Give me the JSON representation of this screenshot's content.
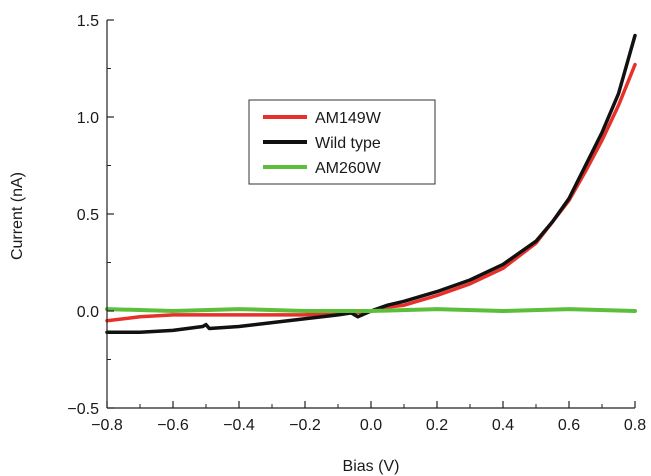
{
  "chart_data": {
    "type": "line",
    "xlabel": "Bias (V)",
    "ylabel": "Current (nA)",
    "xlim": [
      -0.8,
      0.8
    ],
    "ylim": [
      -0.5,
      1.5
    ],
    "x_ticks": [
      -0.8,
      -0.6,
      -0.4,
      -0.2,
      0.0,
      0.2,
      0.4,
      0.6,
      0.8
    ],
    "x_tick_labels": [
      "−0.8",
      "−0.6",
      "−0.4",
      "−0.2",
      "0.0",
      "0.2",
      "0.4",
      "0.6",
      "0.8"
    ],
    "y_ticks": [
      -0.5,
      0.0,
      0.5,
      1.0,
      1.5
    ],
    "y_tick_labels": [
      "−0.5",
      "0.0",
      "0.5",
      "1.0",
      "1.5"
    ],
    "grid": false,
    "legend_position": "upper-center",
    "series": [
      {
        "name": "AM149W",
        "color": "#e8302a",
        "x": [
          -0.8,
          -0.7,
          -0.6,
          -0.5,
          -0.4,
          -0.3,
          -0.2,
          -0.1,
          -0.05,
          0.0,
          0.05,
          0.1,
          0.2,
          0.3,
          0.4,
          0.5,
          0.55,
          0.6,
          0.65,
          0.7,
          0.75,
          0.8
        ],
        "y": [
          -0.05,
          -0.03,
          -0.02,
          -0.02,
          -0.02,
          -0.02,
          -0.02,
          -0.01,
          -0.01,
          0.0,
          0.02,
          0.03,
          0.08,
          0.14,
          0.22,
          0.35,
          0.46,
          0.57,
          0.72,
          0.88,
          1.06,
          1.27
        ]
      },
      {
        "name": "Wild type",
        "color": "#111111",
        "x": [
          -0.8,
          -0.7,
          -0.6,
          -0.51,
          -0.5,
          -0.49,
          -0.4,
          -0.3,
          -0.2,
          -0.1,
          -0.06,
          -0.04,
          0.0,
          0.05,
          0.1,
          0.2,
          0.3,
          0.4,
          0.5,
          0.55,
          0.6,
          0.65,
          0.7,
          0.75,
          0.8
        ],
        "y": [
          -0.11,
          -0.11,
          -0.1,
          -0.08,
          -0.07,
          -0.09,
          -0.08,
          -0.06,
          -0.04,
          -0.02,
          -0.01,
          -0.03,
          0.0,
          0.03,
          0.05,
          0.1,
          0.16,
          0.24,
          0.36,
          0.46,
          0.58,
          0.75,
          0.92,
          1.12,
          1.42
        ]
      },
      {
        "name": "AM260W",
        "color": "#5bbf3c",
        "x": [
          -0.8,
          -0.6,
          -0.4,
          -0.2,
          0.0,
          0.2,
          0.4,
          0.6,
          0.8
        ],
        "y": [
          0.01,
          0.0,
          0.01,
          0.0,
          0.0,
          0.01,
          0.0,
          0.01,
          0.0
        ]
      }
    ]
  }
}
